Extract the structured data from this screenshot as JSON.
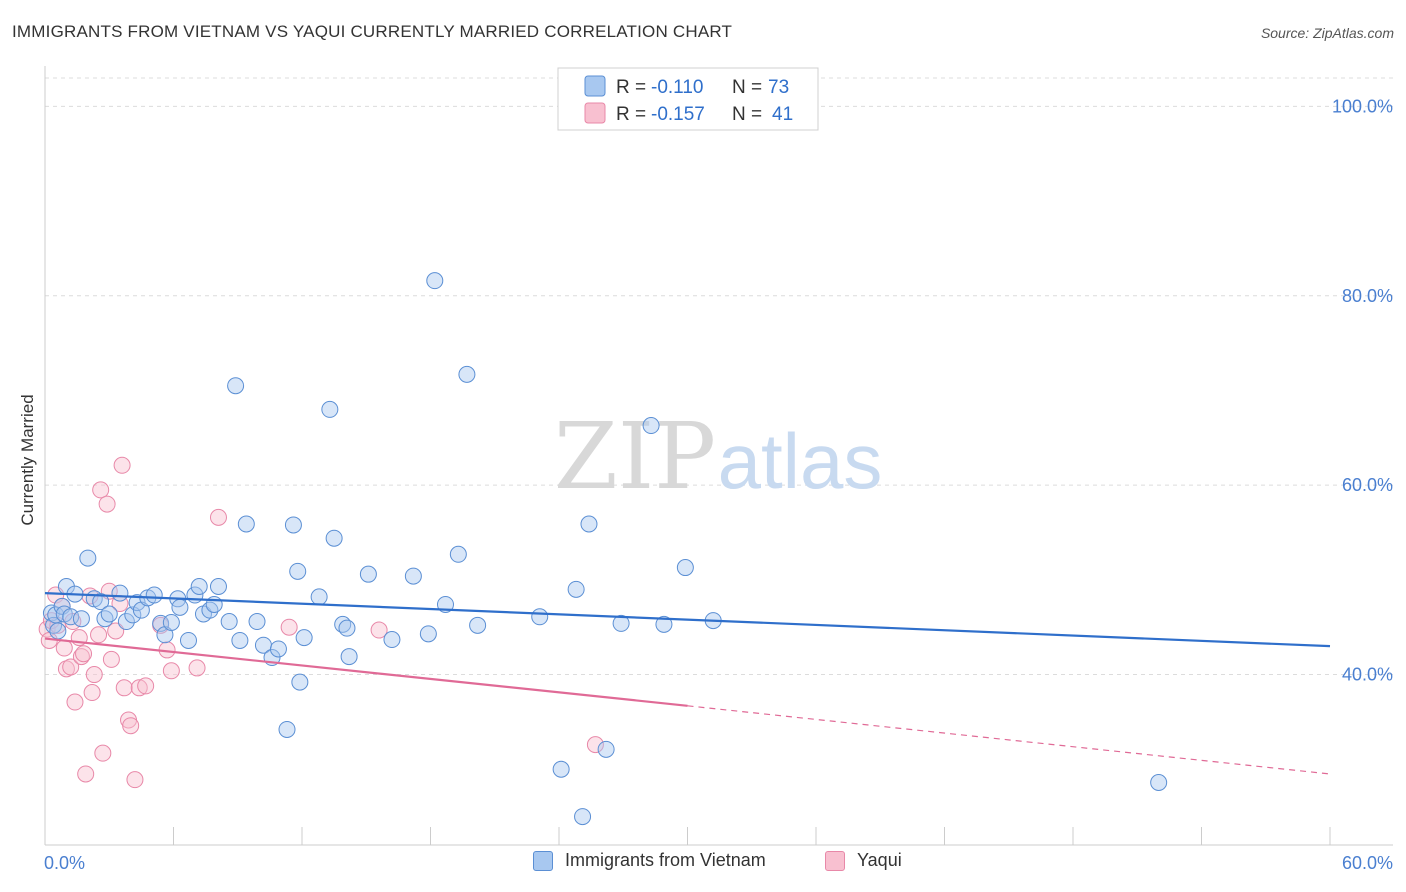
{
  "header": {
    "title": "IMMIGRANTS FROM VIETNAM VS YAQUI CURRENTLY MARRIED CORRELATION CHART",
    "source": "Source: ZipAtlas.com"
  },
  "watermark": {
    "zip": "ZIP",
    "atlas": "atlas"
  },
  "legend_box": {
    "rows": [
      {
        "r_label": "R = ",
        "r_value": "-0.110",
        "n_label": "N = ",
        "n_value": "73"
      },
      {
        "r_label": "R = ",
        "r_value": "-0.157",
        "n_label": "N = ",
        "n_value": "41"
      }
    ]
  },
  "chart_data": {
    "type": "scatter",
    "title": "IMMIGRANTS FROM VIETNAM VS YAQUI CURRENTLY MARRIED CORRELATION CHART",
    "xlabel": "",
    "ylabel": "Currently Married",
    "xlim": [
      0,
      60
    ],
    "ylim": [
      22,
      103
    ],
    "x_tick_labels": [
      "0.0%",
      "60.0%"
    ],
    "y_ticks": [
      40,
      60,
      80,
      100
    ],
    "y_tick_labels": [
      "40.0%",
      "60.0%",
      "80.0%",
      "100.0%"
    ],
    "grid": "horizontal dashed",
    "legend_position": "top-center",
    "colors": {
      "vietnam_fill": "#a8c8f0",
      "vietnam_stroke": "#5b8fd4",
      "vietnam_line": "#2f6fcb",
      "yaqui_fill": "#f8c0d0",
      "yaqui_stroke": "#e888a8",
      "yaqui_line": "#e06a96",
      "tick_text": "#4a7fd0"
    },
    "series": [
      {
        "name": "Immigrants from Vietnam",
        "r": -0.11,
        "n": 73,
        "trend": {
          "x0": 0,
          "y0": 48.6,
          "x1": 60,
          "y1": 43.0
        },
        "points": [
          [
            0.3,
            46.5
          ],
          [
            0.4,
            45.2
          ],
          [
            0.5,
            46.3
          ],
          [
            0.6,
            44.6
          ],
          [
            0.8,
            47.2
          ],
          [
            0.9,
            46.4
          ],
          [
            1.0,
            49.3
          ],
          [
            1.2,
            46.1
          ],
          [
            1.4,
            48.5
          ],
          [
            1.7,
            45.9
          ],
          [
            2.0,
            52.3
          ],
          [
            2.3,
            48.0
          ],
          [
            2.6,
            47.7
          ],
          [
            2.8,
            45.9
          ],
          [
            3.0,
            46.4
          ],
          [
            3.5,
            48.6
          ],
          [
            3.8,
            45.6
          ],
          [
            4.1,
            46.3
          ],
          [
            4.3,
            47.6
          ],
          [
            4.5,
            46.8
          ],
          [
            4.8,
            48.1
          ],
          [
            5.1,
            48.4
          ],
          [
            5.4,
            45.4
          ],
          [
            5.6,
            44.2
          ],
          [
            5.9,
            45.5
          ],
          [
            6.2,
            48.0
          ],
          [
            6.3,
            47.1
          ],
          [
            6.7,
            43.6
          ],
          [
            7.0,
            48.4
          ],
          [
            7.2,
            49.3
          ],
          [
            7.4,
            46.4
          ],
          [
            7.7,
            46.8
          ],
          [
            7.9,
            47.4
          ],
          [
            8.1,
            49.3
          ],
          [
            8.6,
            45.6
          ],
          [
            8.9,
            70.5
          ],
          [
            9.1,
            43.6
          ],
          [
            9.4,
            55.9
          ],
          [
            9.9,
            45.6
          ],
          [
            10.2,
            43.1
          ],
          [
            10.6,
            41.8
          ],
          [
            10.9,
            42.7
          ],
          [
            11.3,
            34.2
          ],
          [
            11.6,
            55.8
          ],
          [
            11.8,
            50.9
          ],
          [
            11.9,
            39.2
          ],
          [
            12.1,
            43.9
          ],
          [
            12.8,
            48.2
          ],
          [
            13.3,
            68.0
          ],
          [
            13.5,
            54.4
          ],
          [
            13.9,
            45.3
          ],
          [
            14.1,
            44.9
          ],
          [
            14.2,
            41.9
          ],
          [
            15.1,
            50.6
          ],
          [
            16.2,
            43.7
          ],
          [
            17.2,
            50.4
          ],
          [
            17.9,
            44.3
          ],
          [
            18.2,
            81.6
          ],
          [
            18.7,
            47.4
          ],
          [
            19.3,
            52.7
          ],
          [
            19.7,
            71.7
          ],
          [
            20.2,
            45.2
          ],
          [
            23.1,
            46.1
          ],
          [
            24.1,
            30.0
          ],
          [
            24.8,
            49.0
          ],
          [
            25.1,
            25.0
          ],
          [
            25.4,
            55.9
          ],
          [
            26.2,
            32.1
          ],
          [
            26.9,
            45.4
          ],
          [
            28.3,
            66.3
          ],
          [
            28.9,
            45.3
          ],
          [
            29.9,
            51.3
          ],
          [
            31.2,
            45.7
          ],
          [
            52.0,
            28.6
          ]
        ]
      },
      {
        "name": "Yaqui",
        "r": -0.157,
        "n": 41,
        "trend": {
          "x0": 0,
          "y0": 43.8,
          "x1": 30,
          "y1": 36.7
        },
        "trend_dashed_to": {
          "x": 60,
          "y": 29.5
        },
        "points": [
          [
            0.1,
            44.8
          ],
          [
            0.2,
            43.6
          ],
          [
            0.3,
            45.7
          ],
          [
            0.5,
            48.4
          ],
          [
            0.6,
            45.2
          ],
          [
            0.8,
            47.2
          ],
          [
            0.9,
            42.8
          ],
          [
            1.0,
            40.6
          ],
          [
            1.2,
            40.8
          ],
          [
            1.3,
            45.6
          ],
          [
            1.4,
            37.1
          ],
          [
            1.6,
            43.9
          ],
          [
            1.7,
            41.9
          ],
          [
            1.8,
            42.2
          ],
          [
            1.9,
            29.5
          ],
          [
            2.1,
            48.3
          ],
          [
            2.2,
            38.1
          ],
          [
            2.3,
            40.0
          ],
          [
            2.5,
            44.2
          ],
          [
            2.6,
            59.5
          ],
          [
            2.7,
            31.7
          ],
          [
            2.9,
            58.0
          ],
          [
            3.0,
            48.8
          ],
          [
            3.1,
            41.6
          ],
          [
            3.3,
            44.6
          ],
          [
            3.5,
            47.5
          ],
          [
            3.6,
            62.1
          ],
          [
            3.7,
            38.6
          ],
          [
            3.9,
            35.2
          ],
          [
            4.0,
            34.6
          ],
          [
            4.2,
            28.9
          ],
          [
            4.4,
            38.6
          ],
          [
            4.7,
            38.8
          ],
          [
            5.4,
            45.2
          ],
          [
            5.7,
            42.6
          ],
          [
            5.9,
            40.4
          ],
          [
            7.1,
            40.7
          ],
          [
            8.1,
            56.6
          ],
          [
            11.4,
            45.0
          ],
          [
            15.6,
            44.7
          ],
          [
            25.7,
            32.6
          ]
        ]
      }
    ]
  },
  "bottom_legend": {
    "items": [
      {
        "label": "Immigrants from Vietnam"
      },
      {
        "label": "Yaqui"
      }
    ]
  }
}
